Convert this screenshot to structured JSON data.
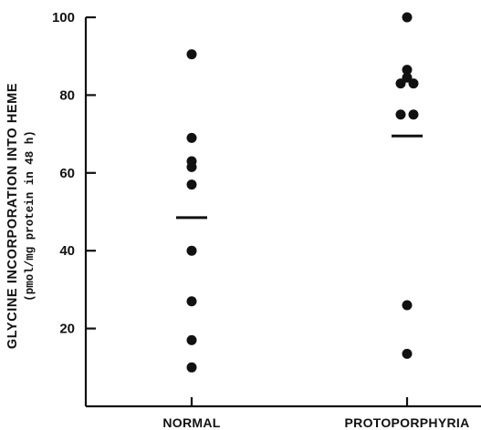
{
  "chart_data": {
    "type": "scatter",
    "title": "",
    "ylabel": "GLYCINE INCORPORATION INTO HEME",
    "ylabel_sub": "(pmol/mg protein in 48 h)",
    "xlabel": "",
    "ylim": [
      0,
      100
    ],
    "yticks": [
      20,
      40,
      60,
      80,
      100
    ],
    "grid": false,
    "categories": [
      "NORMAL",
      "PROTOPORPHYRIA"
    ],
    "series": [
      {
        "category": "NORMAL",
        "points": [
          {
            "x": "NORMAL",
            "y": 90.5
          },
          {
            "x": "NORMAL",
            "y": 69
          },
          {
            "x": "NORMAL",
            "y": 63
          },
          {
            "x": "NORMAL",
            "y": 61.5
          },
          {
            "x": "NORMAL",
            "y": 57
          },
          {
            "x": "NORMAL",
            "y": 40
          },
          {
            "x": "NORMAL",
            "y": 27
          },
          {
            "x": "NORMAL",
            "y": 17
          },
          {
            "x": "NORMAL",
            "y": 10
          }
        ],
        "mean": 48.5
      },
      {
        "category": "PROTOPORPHYRIA",
        "points": [
          {
            "x": "PROTOPORPHYRIA",
            "y": 100
          },
          {
            "x": "PROTOPORPHYRIA",
            "y": 86.5
          },
          {
            "x": "PROTOPORPHYRIA",
            "y": 84.5
          },
          {
            "x": "PROTOPORPHYRIA",
            "y": 83
          },
          {
            "x": "PROTOPORPHYRIA",
            "y": 83
          },
          {
            "x": "PROTOPORPHYRIA",
            "y": 75
          },
          {
            "x": "PROTOPORPHYRIA",
            "y": 75
          },
          {
            "x": "PROTOPORPHYRIA",
            "y": 26
          },
          {
            "x": "PROTOPORPHYRIA",
            "y": 13.5
          }
        ],
        "mean": 69.5
      }
    ],
    "colors": {
      "ink": "#111111",
      "background": "#ffffff"
    }
  }
}
